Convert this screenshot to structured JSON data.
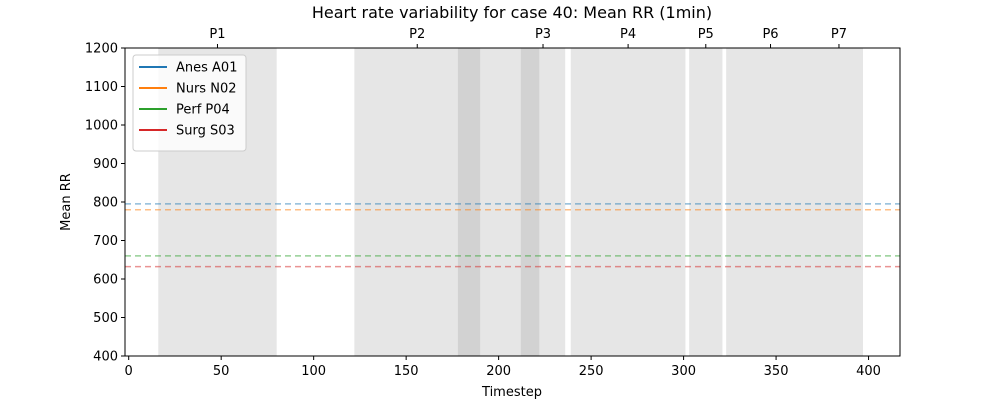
{
  "chart_data": {
    "type": "line",
    "title": "Heart rate variability for case 40: Mean RR (1min)",
    "xlabel": "Timestep",
    "ylabel": "Mean RR",
    "xlim": [
      -2,
      417
    ],
    "ylim": [
      400,
      1200
    ],
    "x_ticks": [
      0,
      50,
      100,
      150,
      200,
      250,
      300,
      350,
      400
    ],
    "y_ticks": [
      400,
      500,
      600,
      700,
      800,
      900,
      1000,
      1100,
      1200
    ],
    "grid": false,
    "legend_position": "upper-left",
    "series": [
      {
        "name": "Anes A01",
        "color": "#1f77b4",
        "mean": 795
      },
      {
        "name": "Nurs N02",
        "color": "#ff7f0e",
        "mean": 780
      },
      {
        "name": "Perf P04",
        "color": "#2ca02c",
        "mean": 660
      },
      {
        "name": "Surg S03",
        "color": "#d62728",
        "mean": 632
      }
    ],
    "phases": [
      {
        "label": "P1",
        "start": 16,
        "end": 80
      },
      {
        "label": "P2",
        "start": 122,
        "end": 190
      },
      {
        "label": "",
        "start": 178,
        "end": 236
      },
      {
        "label": "P3",
        "start": 212,
        "end": 222
      },
      {
        "label": "P4",
        "start": 239,
        "end": 301
      },
      {
        "label": "P5",
        "start": 303,
        "end": 321
      },
      {
        "label": "P6",
        "start": 323,
        "end": 371
      },
      {
        "label": "P7",
        "start": 371,
        "end": 397
      }
    ],
    "phase_label_positions": [
      {
        "label": "P1",
        "x": 48
      },
      {
        "label": "P2",
        "x": 156
      },
      {
        "label": "P3",
        "x": 224
      },
      {
        "label": "P4",
        "x": 270
      },
      {
        "label": "P5",
        "x": 312
      },
      {
        "label": "P6",
        "x": 347
      },
      {
        "label": "P7",
        "x": 384
      }
    ]
  }
}
